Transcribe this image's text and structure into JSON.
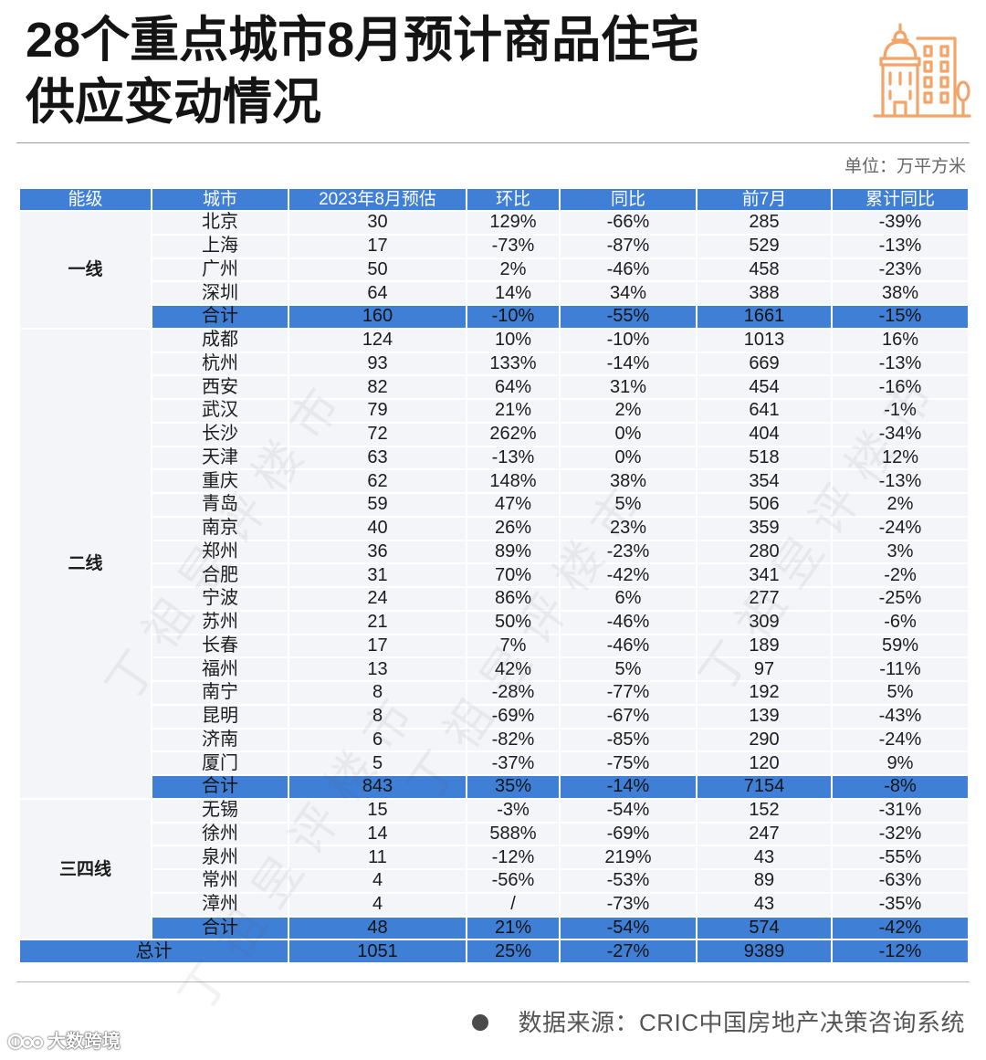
{
  "colors": {
    "header_blue": "#3f7fd6",
    "row_fill": "#f3f5f9",
    "icon_orange": "#f2a469",
    "title_text": "#141414"
  },
  "icons": {
    "header_icon": "city-buildings-icon",
    "source_bullet": "bullet-dot-icon",
    "brand_logo": "brand-logo-icon"
  },
  "chart_data": {
    "type": "table",
    "title_lines": [
      "28个重点城市8月预计商品住宅",
      "供应变动情况"
    ],
    "unit": "单位：万平方米",
    "columns": [
      "能级",
      "城市",
      "2023年8月预估",
      "环比",
      "同比",
      "前7月",
      "累计同比"
    ],
    "groups": [
      {
        "tier": "一线",
        "rows": [
          [
            "北京",
            "30",
            "129%",
            "-66%",
            "285",
            "-39%"
          ],
          [
            "上海",
            "17",
            "-73%",
            "-87%",
            "529",
            "-13%"
          ],
          [
            "广州",
            "50",
            "2%",
            "-46%",
            "458",
            "-23%"
          ],
          [
            "深圳",
            "64",
            "14%",
            "34%",
            "388",
            "38%"
          ]
        ],
        "subtotal": [
          "合计",
          "160",
          "-10%",
          "-55%",
          "1661",
          "-15%"
        ]
      },
      {
        "tier": "二线",
        "rows": [
          [
            "成都",
            "124",
            "10%",
            "-10%",
            "1013",
            "16%"
          ],
          [
            "杭州",
            "93",
            "133%",
            "-14%",
            "669",
            "-13%"
          ],
          [
            "西安",
            "82",
            "64%",
            "31%",
            "454",
            "-16%"
          ],
          [
            "武汉",
            "79",
            "21%",
            "2%",
            "641",
            "-1%"
          ],
          [
            "长沙",
            "72",
            "262%",
            "0%",
            "404",
            "-34%"
          ],
          [
            "天津",
            "63",
            "-13%",
            "0%",
            "518",
            "12%"
          ],
          [
            "重庆",
            "62",
            "148%",
            "38%",
            "354",
            "-13%"
          ],
          [
            "青岛",
            "59",
            "47%",
            "5%",
            "506",
            "2%"
          ],
          [
            "南京",
            "40",
            "26%",
            "23%",
            "359",
            "-24%"
          ],
          [
            "郑州",
            "36",
            "89%",
            "-23%",
            "280",
            "3%"
          ],
          [
            "合肥",
            "31",
            "70%",
            "-42%",
            "341",
            "-2%"
          ],
          [
            "宁波",
            "24",
            "86%",
            "6%",
            "277",
            "-25%"
          ],
          [
            "苏州",
            "21",
            "50%",
            "-46%",
            "309",
            "-6%"
          ],
          [
            "长春",
            "17",
            "7%",
            "-46%",
            "189",
            "59%"
          ],
          [
            "福州",
            "13",
            "42%",
            "5%",
            "97",
            "-11%"
          ],
          [
            "南宁",
            "8",
            "-28%",
            "-77%",
            "192",
            "5%"
          ],
          [
            "昆明",
            "8",
            "-69%",
            "-67%",
            "139",
            "-43%"
          ],
          [
            "济南",
            "6",
            "-82%",
            "-85%",
            "290",
            "-24%"
          ],
          [
            "厦门",
            "5",
            "-37%",
            "-75%",
            "120",
            "9%"
          ]
        ],
        "subtotal": [
          "合计",
          "843",
          "35%",
          "-14%",
          "7154",
          "-8%"
        ]
      },
      {
        "tier": "三四线",
        "rows": [
          [
            "无锡",
            "15",
            "-3%",
            "-54%",
            "152",
            "-31%"
          ],
          [
            "徐州",
            "14",
            "588%",
            "-69%",
            "247",
            "-32%"
          ],
          [
            "泉州",
            "11",
            "-12%",
            "219%",
            "43",
            "-55%"
          ],
          [
            "常州",
            "4",
            "-56%",
            "-53%",
            "89",
            "-63%"
          ],
          [
            "漳州",
            "4",
            "/",
            "-73%",
            "43",
            "-35%"
          ]
        ],
        "subtotal": [
          "合计",
          "48",
          "21%",
          "-54%",
          "574",
          "-42%"
        ]
      }
    ],
    "total": [
      "总计",
      "1051",
      "25%",
      "-27%",
      "9389",
      "-12%"
    ]
  },
  "source": {
    "text": "数据来源：CRIC中国房地产决策咨询系统"
  },
  "watermark": {
    "text": "丁祖昱评楼市",
    "logo_text": "大数跨境"
  }
}
